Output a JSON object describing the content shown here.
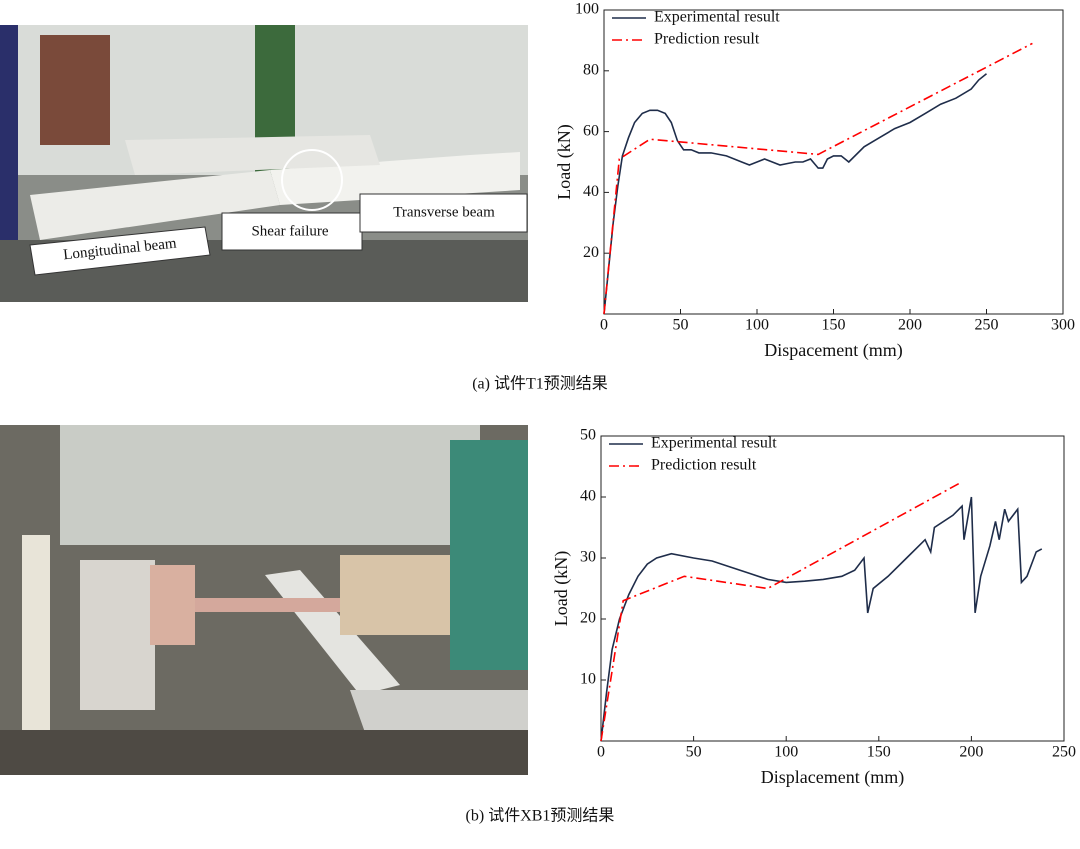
{
  "chart_data": [
    {
      "type": "line",
      "xlabel": "Dispacement (mm)",
      "ylabel": "Load (kN)",
      "xlim": [
        0,
        300
      ],
      "xticks": [
        0,
        50,
        100,
        150,
        200,
        250,
        300
      ],
      "ylim": [
        0,
        100
      ],
      "yticks": [
        20,
        40,
        60,
        80,
        100
      ],
      "series": [
        {
          "name": "Experimental result",
          "color": "#1f2d4a",
          "linestyle": "solid",
          "x": [
            0,
            3,
            6,
            9,
            12,
            16,
            20,
            25,
            30,
            35,
            40,
            44,
            48,
            52,
            57,
            62,
            70,
            80,
            90,
            95,
            100,
            105,
            110,
            115,
            120,
            125,
            130,
            135,
            140,
            143,
            146,
            150,
            155,
            160,
            170,
            180,
            190,
            200,
            210,
            220,
            230,
            240,
            245,
            250
          ],
          "values": [
            0,
            15,
            30,
            42,
            52,
            58,
            63,
            66,
            67,
            67,
            66,
            63,
            57,
            54,
            54,
            53,
            53,
            52,
            50,
            49,
            50,
            51,
            50,
            49,
            49.5,
            50,
            50,
            51,
            48,
            48,
            51,
            52,
            52,
            50,
            55,
            58,
            61,
            63,
            66,
            69,
            71,
            74,
            77,
            79
          ]
        },
        {
          "name": "Prediction result",
          "color": "#ff0000",
          "linestyle": "dashdot",
          "x": [
            0,
            10,
            30,
            140,
            280
          ],
          "values": [
            0,
            51,
            57.5,
            52.5,
            89
          ]
        }
      ]
    },
    {
      "type": "line",
      "xlabel": "Displacement (mm)",
      "ylabel": "Load (kN)",
      "xlim": [
        0,
        250
      ],
      "xticks": [
        0,
        50,
        100,
        150,
        200,
        250
      ],
      "ylim": [
        0,
        50
      ],
      "yticks": [
        10,
        20,
        30,
        40,
        50
      ],
      "series": [
        {
          "name": "Experimental result",
          "color": "#1f2d4a",
          "linestyle": "solid",
          "x": [
            0,
            3,
            6,
            10,
            15,
            20,
            25,
            30,
            38,
            50,
            60,
            70,
            80,
            90,
            100,
            110,
            120,
            130,
            137,
            142,
            144,
            147,
            155,
            165,
            175,
            178,
            180,
            190,
            195,
            196,
            200,
            202,
            205,
            210,
            213,
            215,
            218,
            220,
            225,
            227,
            230,
            235,
            238
          ],
          "values": [
            0,
            8,
            15,
            20,
            24,
            27,
            29,
            30,
            30.7,
            30,
            29.5,
            28.5,
            27.5,
            26.5,
            26,
            26.2,
            26.5,
            27,
            28,
            30,
            21,
            25,
            27,
            30,
            33,
            31,
            35,
            37,
            38.5,
            33,
            40,
            21,
            27,
            32,
            36,
            33,
            38,
            36,
            38,
            26,
            27,
            31,
            31.5
          ]
        },
        {
          "name": "Prediction result",
          "color": "#ff0000",
          "linestyle": "dashdot",
          "x": [
            0,
            12,
            45,
            90,
            195
          ],
          "values": [
            0,
            23,
            27,
            25,
            42.5
          ]
        }
      ]
    }
  ],
  "figure": {
    "captions": [
      "(a) 试件T1预测结果",
      "(b) 试件XB1预测结果"
    ],
    "photo_labels": [
      "Longitudinal beam",
      "Shear failure",
      "Transverse beam"
    ]
  }
}
